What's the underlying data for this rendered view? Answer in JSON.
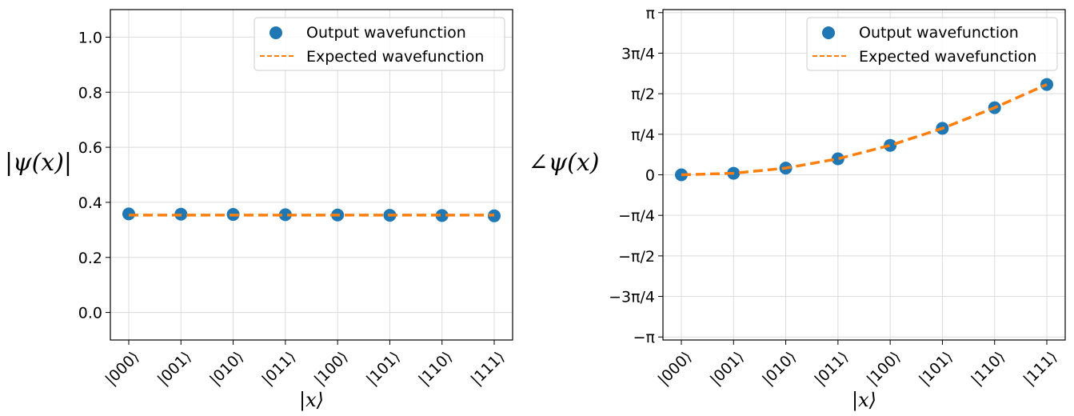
{
  "chart_data": [
    {
      "type": "line",
      "xlabel": "|x⟩",
      "ylabel": "|ψ(x)|",
      "categories": [
        "|000⟩",
        "|001⟩",
        "|010⟩",
        "|011⟩",
        "|100⟩",
        "|101⟩",
        "|110⟩",
        "|111⟩"
      ],
      "ylim": [
        -0.1,
        1.1
      ],
      "yticks": [
        0.0,
        0.2,
        0.4,
        0.6,
        0.8,
        1.0
      ],
      "ytick_labels": [
        "0.0",
        "0.2",
        "0.4",
        "0.6",
        "0.8",
        "1.0"
      ],
      "grid": true,
      "legend": "top-right",
      "series": [
        {
          "name": "Output wavefunction",
          "kind": "scatter",
          "color": "#1f77b4",
          "values": [
            0.358,
            0.357,
            0.356,
            0.355,
            0.354,
            0.353,
            0.352,
            0.351
          ]
        },
        {
          "name": "Expected wavefunction",
          "kind": "dashed-line",
          "color": "#ff7f0e",
          "values": [
            0.3536,
            0.3536,
            0.3536,
            0.3536,
            0.3536,
            0.3536,
            0.3536,
            0.3536
          ]
        }
      ]
    },
    {
      "type": "line",
      "xlabel": "|x⟩",
      "ylabel": "∠ψ(x)",
      "categories": [
        "|000⟩",
        "|001⟩",
        "|010⟩",
        "|011⟩",
        "|100⟩",
        "|101⟩",
        "|110⟩",
        "|111⟩"
      ],
      "ylim": [
        -3.2,
        3.2
      ],
      "yticks": [
        -3.14159,
        -2.35619,
        -1.5708,
        -0.7854,
        0,
        0.7854,
        1.5708,
        2.35619,
        3.14159
      ],
      "ytick_labels": [
        "−π",
        "−3π/4",
        "−π/2",
        "−π/4",
        "0",
        "π/4",
        "π/2",
        "3π/4",
        "π"
      ],
      "grid": true,
      "legend": "top-right",
      "series": [
        {
          "name": "Output wavefunction",
          "kind": "scatter",
          "color": "#1f77b4",
          "values": [
            0.0,
            0.03,
            0.13,
            0.31,
            0.57,
            0.9,
            1.3,
            1.75
          ]
        },
        {
          "name": "Expected wavefunction",
          "kind": "dashed-line",
          "color": "#ff7f0e",
          "values": [
            0.0,
            0.03,
            0.13,
            0.31,
            0.57,
            0.9,
            1.3,
            1.75
          ]
        }
      ]
    }
  ]
}
